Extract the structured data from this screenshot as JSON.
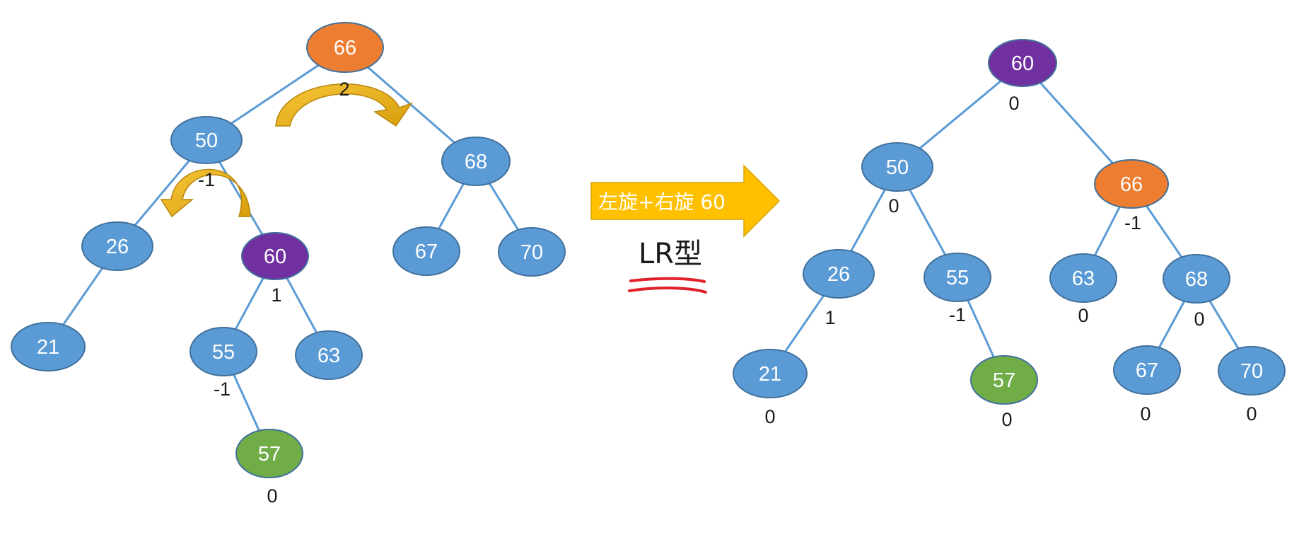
{
  "before_tree": {
    "nodes": [
      {
        "id": "b66",
        "label": "66",
        "color": "#ED7D31",
        "bf": "2"
      },
      {
        "id": "b50",
        "label": "50",
        "color": "#5B9BD5",
        "bf": "-1"
      },
      {
        "id": "b68",
        "label": "68",
        "color": "#5B9BD5",
        "bf": ""
      },
      {
        "id": "b26",
        "label": "26",
        "color": "#5B9BD5",
        "bf": ""
      },
      {
        "id": "b60",
        "label": "60",
        "color": "#7030A0",
        "bf": "1"
      },
      {
        "id": "b67",
        "label": "67",
        "color": "#5B9BD5",
        "bf": ""
      },
      {
        "id": "b70",
        "label": "70",
        "color": "#5B9BD5",
        "bf": ""
      },
      {
        "id": "b21",
        "label": "21",
        "color": "#5B9BD5",
        "bf": ""
      },
      {
        "id": "b55",
        "label": "55",
        "color": "#5B9BD5",
        "bf": "-1"
      },
      {
        "id": "b63",
        "label": "63",
        "color": "#5B9BD5",
        "bf": ""
      },
      {
        "id": "b57",
        "label": "57",
        "color": "#70AD47",
        "bf": "0"
      }
    ],
    "edges": [
      [
        "b66",
        "b50"
      ],
      [
        "b66",
        "b68"
      ],
      [
        "b50",
        "b26"
      ],
      [
        "b50",
        "b60"
      ],
      [
        "b68",
        "b67"
      ],
      [
        "b68",
        "b70"
      ],
      [
        "b26",
        "b21"
      ],
      [
        "b60",
        "b55"
      ],
      [
        "b60",
        "b63"
      ],
      [
        "b55",
        "b57"
      ]
    ]
  },
  "after_tree": {
    "nodes": [
      {
        "id": "a60",
        "label": "60",
        "color": "#7030A0",
        "bf": "0"
      },
      {
        "id": "a50",
        "label": "50",
        "color": "#5B9BD5",
        "bf": "0"
      },
      {
        "id": "a66",
        "label": "66",
        "color": "#ED7D31",
        "bf": "-1"
      },
      {
        "id": "a26",
        "label": "26",
        "color": "#5B9BD5",
        "bf": "1"
      },
      {
        "id": "a55",
        "label": "55",
        "color": "#5B9BD5",
        "bf": "-1"
      },
      {
        "id": "a63",
        "label": "63",
        "color": "#5B9BD5",
        "bf": "0"
      },
      {
        "id": "a68",
        "label": "68",
        "color": "#5B9BD5",
        "bf": "0"
      },
      {
        "id": "a21",
        "label": "21",
        "color": "#5B9BD5",
        "bf": "0"
      },
      {
        "id": "a57",
        "label": "57",
        "color": "#70AD47",
        "bf": "0"
      },
      {
        "id": "a67",
        "label": "67",
        "color": "#5B9BD5",
        "bf": "0"
      },
      {
        "id": "a70",
        "label": "70",
        "color": "#5B9BD5",
        "bf": "0"
      }
    ],
    "edges": [
      [
        "a60",
        "a50"
      ],
      [
        "a60",
        "a66"
      ],
      [
        "a50",
        "a26"
      ],
      [
        "a50",
        "a55"
      ],
      [
        "a66",
        "a63"
      ],
      [
        "a66",
        "a68"
      ],
      [
        "a26",
        "a21"
      ],
      [
        "a55",
        "a57"
      ],
      [
        "a68",
        "a67"
      ],
      [
        "a68",
        "a70"
      ]
    ]
  },
  "transform_arrow": {
    "text": "左旋+右旋 60",
    "color": "#FFC000"
  },
  "type_label": "LR型",
  "colors": {
    "edge": "#5B9BD5",
    "node_outline": "#41719C",
    "rotation_arrow": "#E8B418",
    "underline": "#E0202A"
  }
}
